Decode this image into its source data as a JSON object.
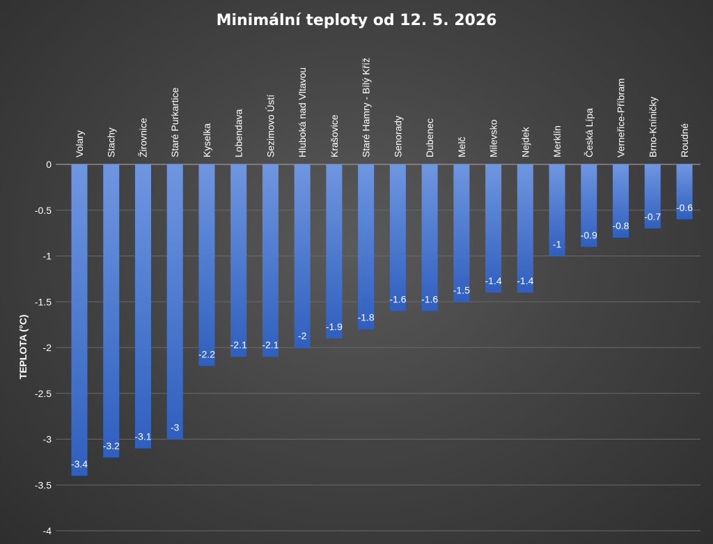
{
  "chart_data": {
    "type": "bar",
    "title": "Minimální teploty od 12. 5. 2026",
    "xlabel": "",
    "ylabel": "TEPLOTA (°C)",
    "ylim": [
      -4,
      0
    ],
    "yticks": [
      0,
      -0.5,
      -1,
      -1.5,
      -2,
      -2.5,
      -3,
      -3.5,
      -4
    ],
    "ytick_labels": [
      "0",
      "-0.5",
      "-1",
      "-1.5",
      "-2",
      "-2.5",
      "-3",
      "-3.5",
      "-4"
    ],
    "grid": true,
    "bar_color": "#4472C4",
    "categories": [
      "Volary",
      "Stachy",
      "Žirovnice",
      "Staré Purkartice",
      "Kyselka",
      "Lobendava",
      "Sezimovo Ústí",
      "Hluboká nad Vltavou",
      "Krašovice",
      "Staré Hamry - Bílý Kříž",
      "Senorady",
      "Dubenec",
      "Melč",
      "Milevsko",
      "Nejdek",
      "Merklín",
      "Česká Lípa",
      "Verneřice-Příbram",
      "Brno-Kníničky",
      "Roudné"
    ],
    "values": [
      -3.4,
      -3.2,
      -3.1,
      -3,
      -2.2,
      -2.1,
      -2.1,
      -2,
      -1.9,
      -1.8,
      -1.6,
      -1.6,
      -1.5,
      -1.4,
      -1.4,
      -1,
      -0.9,
      -0.8,
      -0.7,
      -0.6
    ],
    "value_labels": [
      "-3.4",
      "-3.2",
      "-3.1",
      "-3",
      "-2.2",
      "-2.1",
      "-2.1",
      "-2",
      "-1.9",
      "-1.8",
      "-1.6",
      "-1.6",
      "-1.5",
      "-1.4",
      "-1.4",
      "-1",
      "-0.9",
      "-0.8",
      "-0.7",
      "-0.6"
    ]
  }
}
